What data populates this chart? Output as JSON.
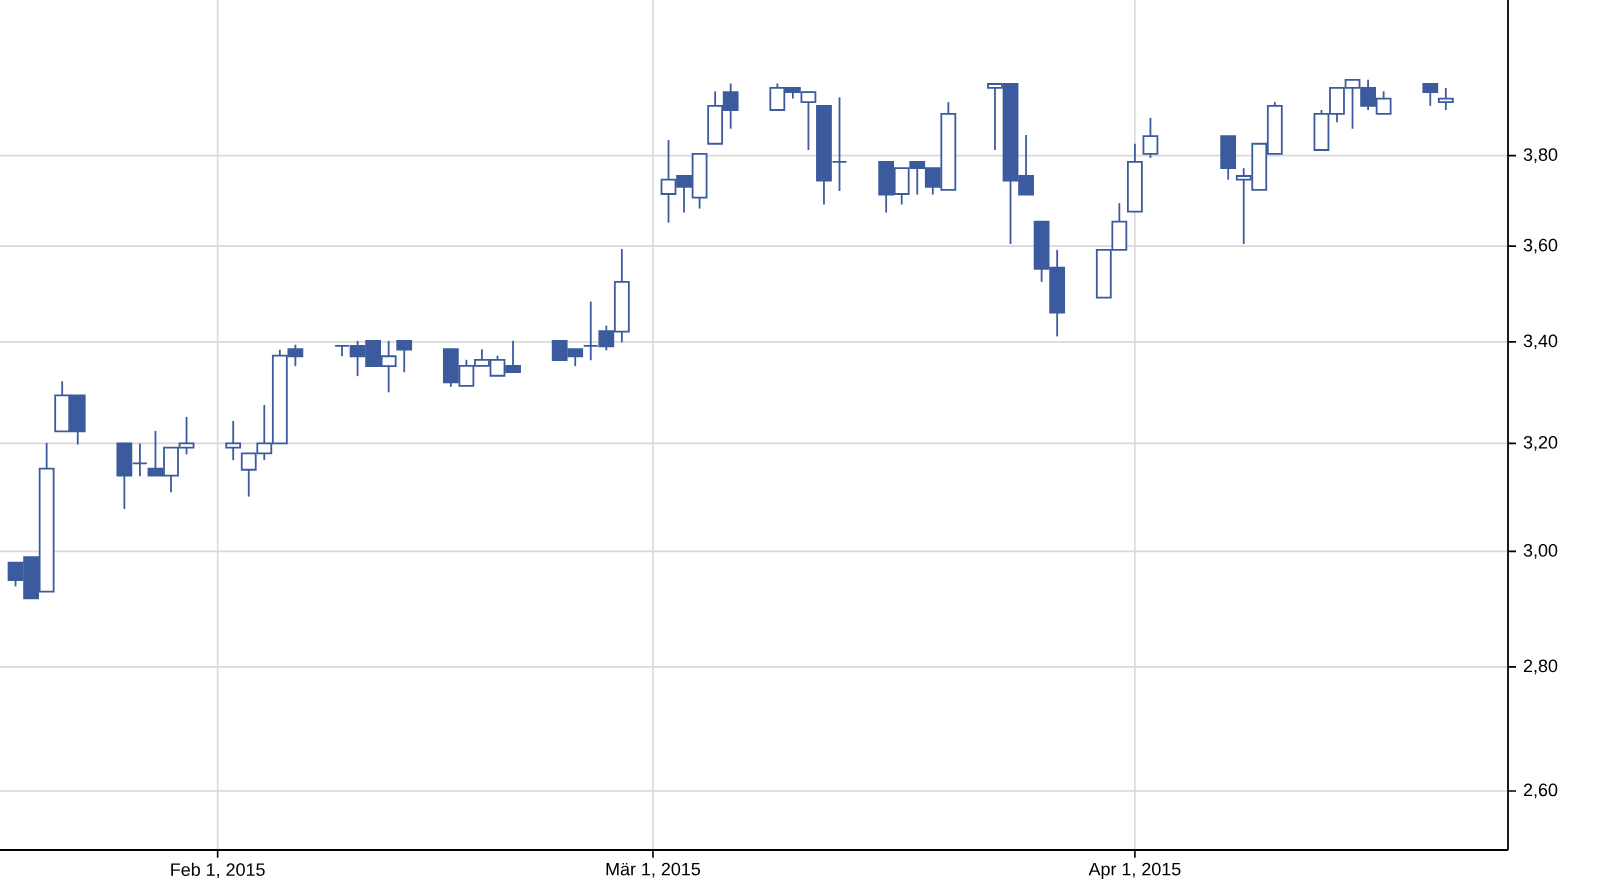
{
  "chart_data": {
    "type": "candlestick",
    "color": "#3b5b9e",
    "log": true,
    "grid": true,
    "xlim": [
      "2015-01-18",
      "2015-04-25"
    ],
    "ylim": [
      2.51,
      4.17
    ],
    "xticks": [
      {
        "value": "2015-02-01",
        "label": "Feb 1, 2015"
      },
      {
        "value": "2015-03-01",
        "label": "Mär 1, 2015"
      },
      {
        "value": "2015-04-01",
        "label": "Apr 1, 2015"
      }
    ],
    "yticks": [
      {
        "value": 2.6,
        "label": "2,60"
      },
      {
        "value": 2.8,
        "label": "2,80"
      },
      {
        "value": 3.0,
        "label": "3,00"
      },
      {
        "value": 3.2,
        "label": "3,20"
      },
      {
        "value": 3.4,
        "label": "3,40"
      },
      {
        "value": 3.6,
        "label": "3,60"
      },
      {
        "value": 3.8,
        "label": "3,80"
      }
    ],
    "x": [
      "2015-01-19",
      "2015-01-20",
      "2015-01-21",
      "2015-01-22",
      "2015-01-23",
      "2015-01-26",
      "2015-01-27",
      "2015-01-28",
      "2015-01-29",
      "2015-01-30",
      "2015-02-02",
      "2015-02-03",
      "2015-02-04",
      "2015-02-05",
      "2015-02-06",
      "2015-02-09",
      "2015-02-10",
      "2015-02-11",
      "2015-02-12",
      "2015-02-13",
      "2015-02-16",
      "2015-02-17",
      "2015-02-18",
      "2015-02-19",
      "2015-02-20",
      "2015-02-23",
      "2015-02-24",
      "2015-02-25",
      "2015-02-26",
      "2015-02-27",
      "2015-03-02",
      "2015-03-03",
      "2015-03-04",
      "2015-03-05",
      "2015-03-06",
      "2015-03-09",
      "2015-03-10",
      "2015-03-11",
      "2015-03-12",
      "2015-03-13",
      "2015-03-16",
      "2015-03-17",
      "2015-03-18",
      "2015-03-19",
      "2015-03-20",
      "2015-03-23",
      "2015-03-24",
      "2015-03-25",
      "2015-03-26",
      "2015-03-27",
      "2015-03-30",
      "2015-03-31",
      "2015-04-01",
      "2015-04-02",
      "2015-04-07",
      "2015-04-08",
      "2015-04-09",
      "2015-04-10",
      "2015-04-13",
      "2015-04-14",
      "2015-04-15",
      "2015-04-16",
      "2015-04-17",
      "2015-04-20",
      "2015-04-21"
    ],
    "ohlc": [
      [
        2.98,
        2.98,
        2.938,
        2.949
      ],
      [
        2.99,
        2.99,
        2.917,
        2.917
      ],
      [
        2.929,
        3.201,
        2.929,
        3.152
      ],
      [
        3.223,
        3.321,
        3.223,
        3.293
      ],
      [
        3.293,
        3.293,
        3.198,
        3.223
      ],
      [
        3.2,
        3.2,
        3.077,
        3.139
      ],
      [
        3.162,
        3.2,
        3.138,
        3.162
      ],
      [
        3.152,
        3.224,
        3.139,
        3.139
      ],
      [
        3.139,
        3.192,
        3.108,
        3.192
      ],
      [
        3.192,
        3.251,
        3.179,
        3.2
      ],
      [
        3.192,
        3.243,
        3.168,
        3.2
      ],
      [
        3.15,
        3.181,
        3.1,
        3.181
      ],
      [
        3.181,
        3.274,
        3.168,
        3.2
      ],
      [
        3.2,
        3.384,
        3.2,
        3.372
      ],
      [
        3.385,
        3.394,
        3.351,
        3.371
      ],
      [
        3.392,
        3.392,
        3.371,
        3.392
      ],
      [
        3.392,
        3.402,
        3.331,
        3.371
      ],
      [
        3.402,
        3.402,
        3.351,
        3.351
      ],
      [
        3.351,
        3.402,
        3.299,
        3.371
      ],
      [
        3.402,
        3.402,
        3.339,
        3.384
      ],
      [
        3.385,
        3.385,
        3.31,
        3.319
      ],
      [
        3.312,
        3.364,
        3.312,
        3.352
      ],
      [
        3.352,
        3.385,
        3.352,
        3.364
      ],
      [
        3.332,
        3.372,
        3.332,
        3.364
      ],
      [
        3.352,
        3.402,
        3.339,
        3.339
      ],
      [
        3.402,
        3.402,
        3.363,
        3.363
      ],
      [
        3.385,
        3.385,
        3.351,
        3.371
      ],
      [
        3.392,
        3.483,
        3.363,
        3.392
      ],
      [
        3.422,
        3.433,
        3.383,
        3.391
      ],
      [
        3.421,
        3.594,
        3.399,
        3.524
      ],
      [
        3.714,
        3.836,
        3.651,
        3.746
      ],
      [
        3.754,
        3.754,
        3.673,
        3.73
      ],
      [
        3.706,
        3.804,
        3.682,
        3.804
      ],
      [
        3.827,
        3.949,
        3.827,
        3.915
      ],
      [
        3.947,
        3.968,
        3.862,
        3.905
      ],
      [
        3.905,
        3.968,
        3.905,
        3.957
      ],
      [
        3.957,
        3.957,
        3.932,
        3.947
      ],
      [
        3.924,
        3.947,
        3.813,
        3.947
      ],
      [
        3.915,
        3.915,
        3.691,
        3.744
      ],
      [
        3.786,
        3.935,
        3.721,
        3.786
      ],
      [
        3.786,
        3.786,
        3.673,
        3.713
      ],
      [
        3.714,
        3.772,
        3.691,
        3.772
      ],
      [
        3.786,
        3.786,
        3.713,
        3.772
      ],
      [
        3.772,
        3.772,
        3.713,
        3.73
      ],
      [
        3.723,
        3.924,
        3.723,
        3.896
      ],
      [
        3.957,
        3.966,
        3.813,
        3.966
      ],
      [
        3.966,
        3.966,
        3.605,
        3.744
      ],
      [
        3.754,
        3.847,
        3.713,
        3.713
      ],
      [
        3.653,
        3.653,
        3.524,
        3.552
      ],
      [
        3.554,
        3.592,
        3.411,
        3.46
      ],
      [
        3.491,
        3.592,
        3.491,
        3.592
      ],
      [
        3.592,
        3.694,
        3.592,
        3.653
      ],
      [
        3.675,
        3.827,
        3.675,
        3.786
      ],
      [
        3.804,
        3.887,
        3.795,
        3.845
      ],
      [
        3.845,
        3.845,
        3.746,
        3.772
      ],
      [
        3.746,
        3.772,
        3.605,
        3.754
      ],
      [
        3.723,
        3.827,
        3.723,
        3.827
      ],
      [
        3.804,
        3.924,
        3.804,
        3.915
      ],
      [
        3.813,
        3.905,
        3.813,
        3.896
      ],
      [
        3.896,
        3.957,
        3.877,
        3.957
      ],
      [
        3.957,
        3.976,
        3.862,
        3.976
      ],
      [
        3.957,
        3.976,
        3.905,
        3.915
      ],
      [
        3.896,
        3.949,
        3.896,
        3.932
      ],
      [
        3.966,
        3.966,
        3.915,
        3.947
      ],
      [
        3.924,
        3.957,
        3.905,
        3.932
      ]
    ]
  }
}
